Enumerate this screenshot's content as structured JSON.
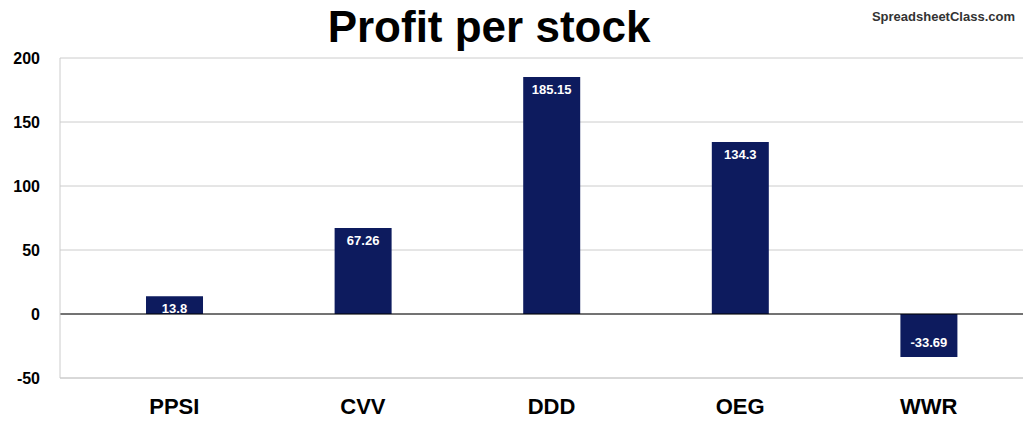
{
  "chart_data": {
    "type": "bar",
    "title": "Profit per stock",
    "categories": [
      "PPSI",
      "CVV",
      "DDD",
      "OEG",
      "WWR"
    ],
    "values": [
      13.8,
      67.26,
      185.15,
      134.3,
      -33.69
    ],
    "color": "#0d1b5e",
    "ylim": [
      -50,
      200
    ],
    "yticks": [
      -50,
      0,
      50,
      100,
      150,
      200
    ],
    "grid": true,
    "data_labels": true,
    "annotations": [
      "SpreadsheetClass.com"
    ]
  }
}
